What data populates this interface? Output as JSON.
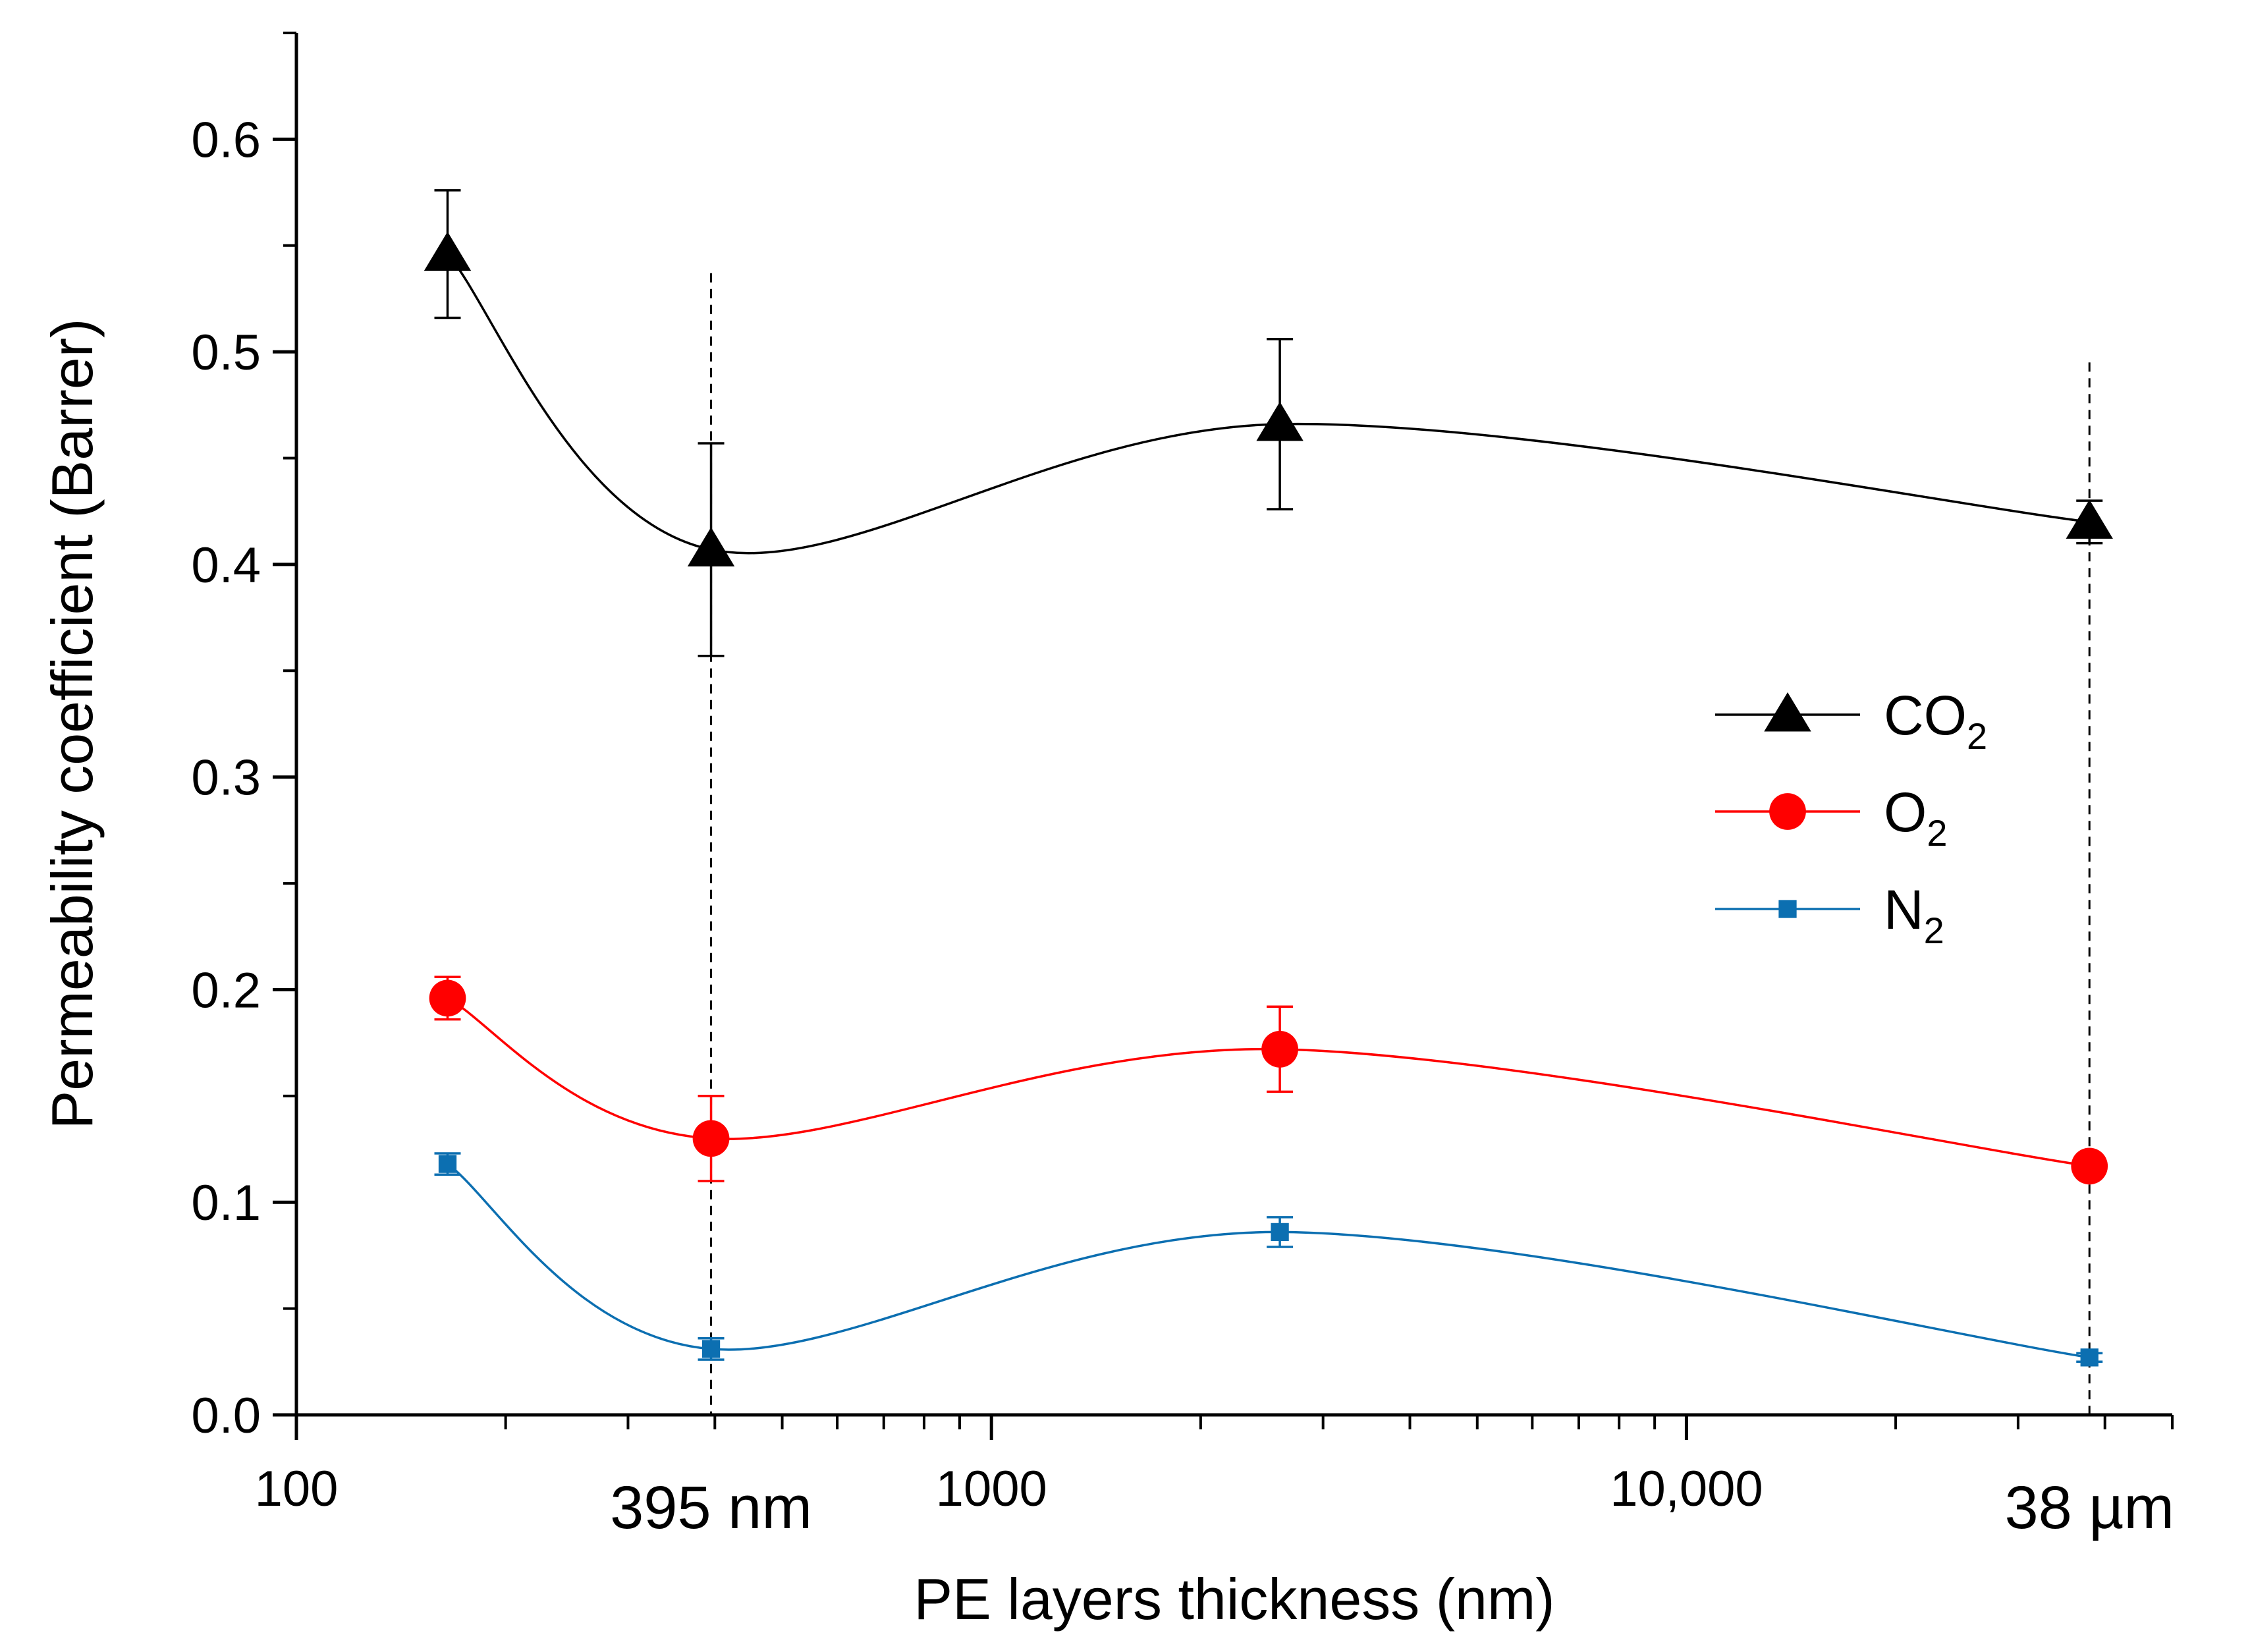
{
  "chart_data": {
    "type": "line",
    "title": "",
    "xlabel": "PE layers thickness (nm)",
    "ylabel": "Permeability coefficient (Barrer)",
    "x_scale": "log",
    "xlim": [
      100,
      50000
    ],
    "ylim": [
      0,
      0.65
    ],
    "x_ticks": [
      {
        "value": 100,
        "label": "100",
        "emphasis": false
      },
      {
        "value": 395,
        "label": "395 nm",
        "emphasis": true
      },
      {
        "value": 1000,
        "label": "1000",
        "emphasis": false
      },
      {
        "value": 10000,
        "label": "10,000",
        "emphasis": false
      },
      {
        "value": 38000,
        "label": "38 µm",
        "emphasis": true
      }
    ],
    "y_ticks": [
      {
        "value": 0.0,
        "label": "0.0"
      },
      {
        "value": 0.1,
        "label": "0.1"
      },
      {
        "value": 0.2,
        "label": "0.2"
      },
      {
        "value": 0.3,
        "label": "0.3"
      },
      {
        "value": 0.4,
        "label": "0.4"
      },
      {
        "value": 0.5,
        "label": "0.5"
      },
      {
        "value": 0.6,
        "label": "0.6"
      }
    ],
    "reference_lines": [
      {
        "x": 395,
        "y_top": 0.537
      },
      {
        "x": 38000,
        "y_top": 0.495
      }
    ],
    "grid": false,
    "legend_position": "right",
    "series": [
      {
        "name": "CO",
        "name_sub": "2",
        "color": "#000000",
        "marker": "triangle",
        "points": [
          {
            "x": 165,
            "y": 0.546,
            "err": 0.03
          },
          {
            "x": 395,
            "y": 0.407,
            "err": 0.05
          },
          {
            "x": 2600,
            "y": 0.466,
            "err": 0.04
          },
          {
            "x": 38000,
            "y": 0.42,
            "err": 0.01
          }
        ]
      },
      {
        "name": "O",
        "name_sub": "2",
        "color": "#ff0000",
        "marker": "circle",
        "points": [
          {
            "x": 165,
            "y": 0.196,
            "err": 0.01
          },
          {
            "x": 395,
            "y": 0.13,
            "err": 0.02
          },
          {
            "x": 2600,
            "y": 0.172,
            "err": 0.02
          },
          {
            "x": 38000,
            "y": 0.117,
            "err": 0.003
          }
        ]
      },
      {
        "name": "N",
        "name_sub": "2",
        "color": "#0c6fb1",
        "marker": "square",
        "points": [
          {
            "x": 165,
            "y": 0.118,
            "err": 0.005
          },
          {
            "x": 395,
            "y": 0.031,
            "err": 0.005
          },
          {
            "x": 2600,
            "y": 0.086,
            "err": 0.007
          },
          {
            "x": 38000,
            "y": 0.027,
            "err": 0.002
          }
        ]
      }
    ]
  }
}
